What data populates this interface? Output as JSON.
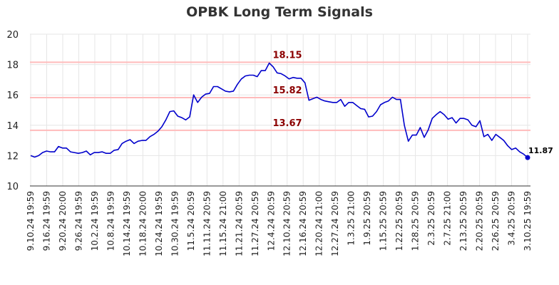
{
  "chart_data": {
    "type": "line",
    "title": "OPBK Long Term Signals",
    "xlabel": "",
    "ylabel": "",
    "ylim": [
      10,
      20
    ],
    "yticks": [
      10,
      12,
      14,
      16,
      18,
      20
    ],
    "grid": true,
    "x_tick_labels": [
      "9.10.24 19:59",
      "9.16.24 19:59",
      "9.20.24 20:00",
      "9.26.24 19:59",
      "10.2.24 19:59",
      "10.8.24 19:59",
      "10.14.24 19:59",
      "10.18.24 20:00",
      "10.24.24 19:59",
      "10.30.24 19:59",
      "11.5.24 20:59",
      "11.11.24 20:59",
      "11.15.24 21:00",
      "11.21.24 20:59",
      "11.27.24 20:59",
      "12.4.24 20:59",
      "12.10.24 20:59",
      "12.16.24 20:59",
      "12.20.24 21:00",
      "12.27.24 20:59",
      "1.3.25 21:00",
      "1.9.25 20:59",
      "1.15.25 20:59",
      "1.22.25 20:59",
      "1.28.25 20:59",
      "2.3.25 20:59",
      "2.7.25 21:00",
      "2.13.25 20:59",
      "2.20.25 20:59",
      "2.26.25 20:59",
      "3.4.25 20:59",
      "3.10.25 19:59"
    ],
    "reference_lines": [
      {
        "value": 18.15,
        "label": "18.15",
        "color": "#ffbbbb",
        "label_color": "#8b0000"
      },
      {
        "value": 15.82,
        "label": "15.82",
        "color": "#ffbbbb",
        "label_color": "#8b0000"
      },
      {
        "value": 13.67,
        "label": "13.67",
        "color": "#ffbbbb",
        "label_color": "#8b0000"
      }
    ],
    "series": [
      {
        "color": "#0000cc",
        "values": [
          12.0,
          11.9,
          12.0,
          12.2,
          12.3,
          12.25,
          12.25,
          12.6,
          12.5,
          12.5,
          12.25,
          12.2,
          12.15,
          12.2,
          12.3,
          12.05,
          12.2,
          12.2,
          12.25,
          12.15,
          12.15,
          12.35,
          12.4,
          12.8,
          12.95,
          13.05,
          12.8,
          12.95,
          13.0,
          13.0,
          13.25,
          13.4,
          13.6,
          13.9,
          14.35,
          14.9,
          14.95,
          14.6,
          14.5,
          14.35,
          14.55,
          16.0,
          15.5,
          15.85,
          16.05,
          16.1,
          16.55,
          16.55,
          16.4,
          16.25,
          16.2,
          16.25,
          16.7,
          17.05,
          17.25,
          17.3,
          17.3,
          17.2,
          17.6,
          17.6,
          18.1,
          17.85,
          17.45,
          17.4,
          17.25,
          17.05,
          17.15,
          17.1,
          17.1,
          16.8,
          15.65,
          15.75,
          15.85,
          15.7,
          15.6,
          15.55,
          15.5,
          15.5,
          15.7,
          15.25,
          15.5,
          15.5,
          15.3,
          15.1,
          15.05,
          14.55,
          14.6,
          14.9,
          15.35,
          15.5,
          15.6,
          15.85,
          15.7,
          15.7,
          14.0,
          12.95,
          13.35,
          13.35,
          13.85,
          13.2,
          13.7,
          14.45,
          14.7,
          14.9,
          14.7,
          14.4,
          14.5,
          14.15,
          14.45,
          14.45,
          14.35,
          14.0,
          13.9,
          14.3,
          13.25,
          13.4,
          13.0,
          13.4,
          13.2,
          13.0,
          12.65,
          12.4,
          12.5,
          12.25,
          12.1,
          11.87
        ]
      }
    ],
    "last_value_label": "11.87"
  }
}
